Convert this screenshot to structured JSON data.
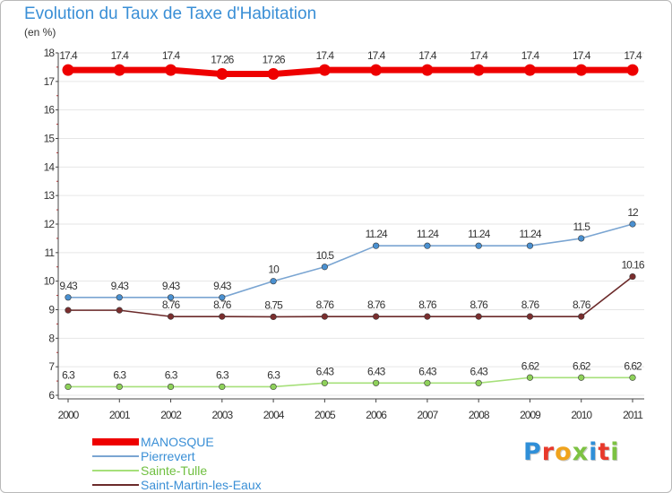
{
  "title": "Evolution du Taux de Taxe d'Habitation",
  "unit": "(en %)",
  "logo_text": "Proxiti",
  "colors": {
    "title": "#3a8fd6",
    "grid": "#e6e6e6",
    "axis": "#444444",
    "text": "#333333",
    "logo": [
      "#2f8fd8",
      "#e8392b",
      "#f0a31c",
      "#7cc242",
      "#2f8fd8",
      "#e8392b",
      "#7cc242"
    ]
  },
  "chart_data": {
    "type": "line",
    "title": "Evolution du Taux de Taxe d'Habitation",
    "ylabel": "(en %)",
    "xlabel": "",
    "categories": [
      "2000",
      "2001",
      "2002",
      "2003",
      "2004",
      "2005",
      "2006",
      "2007",
      "2008",
      "2009",
      "2010",
      "2011"
    ],
    "ylim": [
      6,
      18
    ],
    "yticks": [
      "6",
      "7",
      "8",
      "9",
      "10",
      "11",
      "12",
      "13",
      "14",
      "15",
      "16",
      "17",
      "18"
    ],
    "grid": "horizontal",
    "legend_position": "bottom-left",
    "series": [
      {
        "name": "MANOSQUE",
        "color": "#ee0000",
        "style": "thick",
        "values": [
          17.4,
          17.4,
          17.4,
          17.26,
          17.26,
          17.4,
          17.4,
          17.4,
          17.4,
          17.4,
          17.4,
          17.4
        ],
        "labels": [
          "17.4",
          "17.4",
          "17.4",
          "17.26",
          "17.26",
          "17.4",
          "17.4",
          "17.4",
          "17.4",
          "17.4",
          "17.4",
          "17.4"
        ]
      },
      {
        "name": "Pierrevert",
        "color": "#7aa5d2",
        "marker_color": "#4a90d0",
        "style": "thin",
        "values": [
          9.43,
          9.43,
          9.43,
          9.43,
          10,
          10.5,
          11.24,
          11.24,
          11.24,
          11.24,
          11.5,
          12
        ],
        "labels": [
          "9.43",
          "9.43",
          "9.43",
          "9.43",
          "10",
          "10.5",
          "11.24",
          "11.24",
          "11.24",
          "11.24",
          "11.5",
          "12"
        ]
      },
      {
        "name": "Sainte-Tulle",
        "color": "#a6e07a",
        "marker_color": "#8ed15a",
        "style": "thin",
        "values": [
          6.3,
          6.3,
          6.3,
          6.3,
          6.3,
          6.43,
          6.43,
          6.43,
          6.43,
          6.62,
          6.62,
          6.62
        ],
        "labels": [
          "6.3",
          "6.3",
          "6.3",
          "6.3",
          "6.3",
          "6.43",
          "6.43",
          "6.43",
          "6.43",
          "6.62",
          "6.62",
          "6.62"
        ]
      },
      {
        "name": "Saint-Martin-les-Eaux",
        "color": "#6b2a2a",
        "marker_color": "#7a2e2e",
        "style": "thin",
        "values": [
          8.98,
          8.98,
          8.76,
          8.76,
          8.75,
          8.76,
          8.76,
          8.76,
          8.76,
          8.76,
          8.76,
          10.16
        ],
        "labels": [
          "",
          "",
          "8.76",
          "8.76",
          "8.75",
          "8.76",
          "8.76",
          "8.76",
          "8.76",
          "8.76",
          "8.76",
          "10.16"
        ]
      }
    ]
  }
}
